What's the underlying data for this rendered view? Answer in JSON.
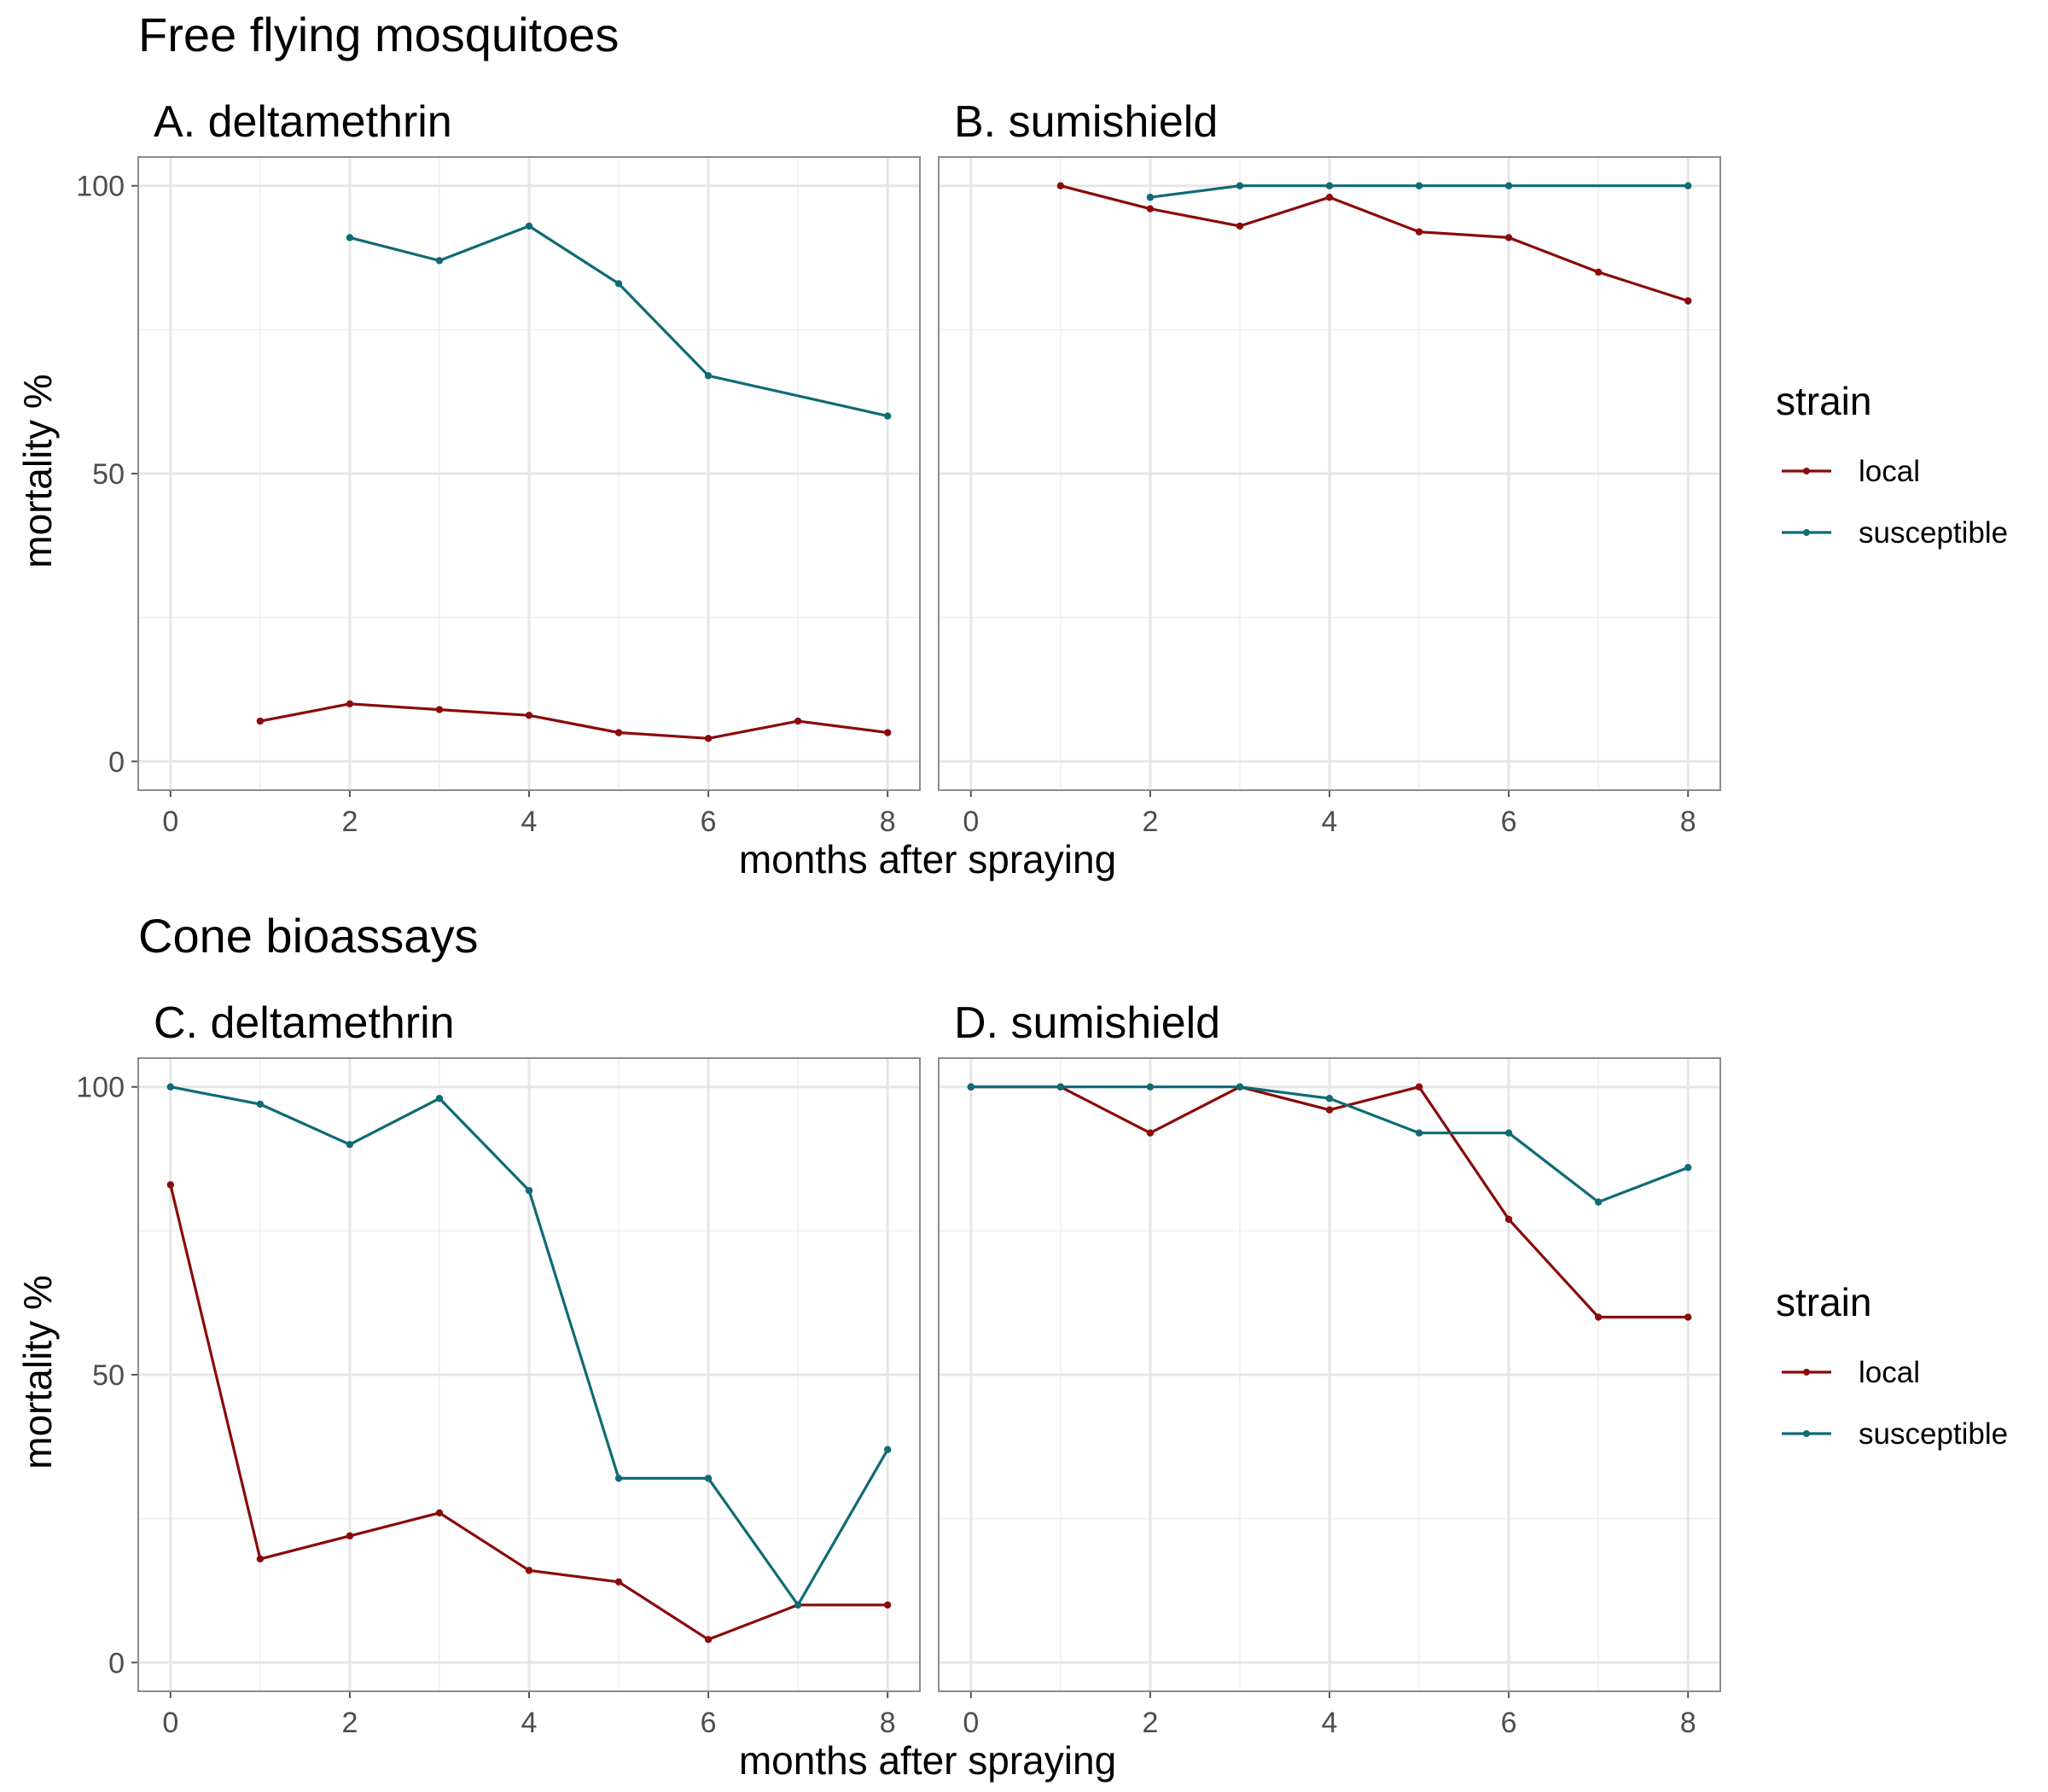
{
  "figure": {
    "sections": [
      {
        "title": "Free flying mosquitoes",
        "xlabel": "months after spraying",
        "ylabel": "mortality %",
        "legend": {
          "title": "strain",
          "entries": [
            "local",
            "susceptible"
          ]
        }
      },
      {
        "title": "Cone bioassays",
        "xlabel": "months after spraying",
        "ylabel": "mortality %",
        "legend": {
          "title": "strain",
          "entries": [
            "local",
            "susceptible"
          ]
        }
      }
    ]
  },
  "colors": {
    "local": "#8b0a0a",
    "susceptible": "#0f6b74"
  },
  "chart_data": [
    {
      "type": "line",
      "title": "A. deltamethrin",
      "section": "Free flying mosquitoes",
      "xlabel": "months after spraying",
      "ylabel": "mortality %",
      "xlim": [
        0,
        8
      ],
      "ylim": [
        0,
        100
      ],
      "xticks": [
        0,
        2,
        4,
        6,
        8
      ],
      "yticks": [
        0,
        50,
        100
      ],
      "grid": true,
      "legend": "right",
      "series": [
        {
          "name": "local",
          "points": [
            [
              1,
              7
            ],
            [
              2,
              10
            ],
            [
              3,
              9
            ],
            [
              4,
              8
            ],
            [
              5,
              5
            ],
            [
              6,
              4
            ],
            [
              7,
              7
            ],
            [
              8,
              5
            ]
          ]
        },
        {
          "name": "susceptible",
          "points": [
            [
              2,
              91
            ],
            [
              3,
              87
            ],
            [
              4,
              93
            ],
            [
              5,
              83
            ],
            [
              6,
              67
            ],
            [
              8,
              60
            ]
          ]
        }
      ]
    },
    {
      "type": "line",
      "title": "B. sumishield",
      "section": "Free flying mosquitoes",
      "xlabel": "months after spraying",
      "ylabel": "mortality %",
      "xlim": [
        0,
        8
      ],
      "ylim": [
        0,
        100
      ],
      "xticks": [
        0,
        2,
        4,
        6,
        8
      ],
      "yticks": [
        0,
        50,
        100
      ],
      "grid": true,
      "legend": "right",
      "series": [
        {
          "name": "local",
          "points": [
            [
              1,
              100
            ],
            [
              2,
              96
            ],
            [
              3,
              93
            ],
            [
              4,
              98
            ],
            [
              5,
              92
            ],
            [
              6,
              91
            ],
            [
              7,
              85
            ],
            [
              8,
              80
            ]
          ]
        },
        {
          "name": "susceptible",
          "points": [
            [
              2,
              98
            ],
            [
              3,
              100
            ],
            [
              4,
              100
            ],
            [
              5,
              100
            ],
            [
              6,
              100
            ],
            [
              8,
              100
            ]
          ]
        }
      ]
    },
    {
      "type": "line",
      "title": "C. deltamethrin",
      "section": "Cone bioassays",
      "xlabel": "months after spraying",
      "ylabel": "mortality %",
      "xlim": [
        0,
        8
      ],
      "ylim": [
        0,
        100
      ],
      "xticks": [
        0,
        2,
        4,
        6,
        8
      ],
      "yticks": [
        0,
        50,
        100
      ],
      "grid": true,
      "legend": "right",
      "series": [
        {
          "name": "local",
          "points": [
            [
              0,
              83
            ],
            [
              1,
              18
            ],
            [
              2,
              22
            ],
            [
              3,
              26
            ],
            [
              4,
              16
            ],
            [
              5,
              14
            ],
            [
              6,
              4
            ],
            [
              7,
              10
            ],
            [
              8,
              10
            ]
          ]
        },
        {
          "name": "susceptible",
          "points": [
            [
              0,
              100
            ],
            [
              1,
              97
            ],
            [
              2,
              90
            ],
            [
              3,
              98
            ],
            [
              4,
              82
            ],
            [
              5,
              32
            ],
            [
              6,
              32
            ],
            [
              7,
              10
            ],
            [
              8,
              37
            ]
          ]
        }
      ]
    },
    {
      "type": "line",
      "title": "D. sumishield",
      "section": "Cone bioassays",
      "xlabel": "months after spraying",
      "ylabel": "mortality %",
      "xlim": [
        0,
        8
      ],
      "ylim": [
        0,
        100
      ],
      "xticks": [
        0,
        2,
        4,
        6,
        8
      ],
      "yticks": [
        0,
        50,
        100
      ],
      "grid": true,
      "legend": "right",
      "series": [
        {
          "name": "local",
          "points": [
            [
              0,
              100
            ],
            [
              1,
              100
            ],
            [
              2,
              92
            ],
            [
              3,
              100
            ],
            [
              4,
              96
            ],
            [
              5,
              100
            ],
            [
              6,
              77
            ],
            [
              7,
              60
            ],
            [
              8,
              60
            ]
          ]
        },
        {
          "name": "susceptible",
          "points": [
            [
              0,
              100
            ],
            [
              1,
              100
            ],
            [
              2,
              100
            ],
            [
              3,
              100
            ],
            [
              4,
              98
            ],
            [
              5,
              92
            ],
            [
              6,
              92
            ],
            [
              7,
              80
            ],
            [
              8,
              86
            ]
          ]
        }
      ]
    }
  ]
}
